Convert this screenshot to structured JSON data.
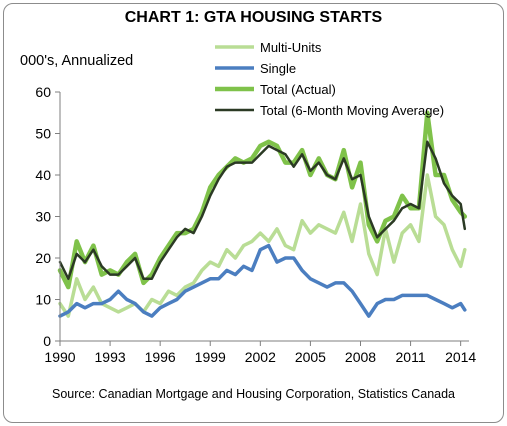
{
  "chart_data": {
    "type": "line",
    "title": "CHART 1: GTA HOUSING STARTS",
    "ylabel": "000's, Annualized",
    "source": "Source: Canadian Mortgage and Housing Corporation, Statistics Canada",
    "ylim": [
      0,
      60
    ],
    "yticks": [
      0,
      10,
      20,
      30,
      40,
      50,
      60
    ],
    "xlim": [
      1990,
      2014.5
    ],
    "xticks": [
      1990,
      1993,
      1996,
      1999,
      2002,
      2005,
      2008,
      2011,
      2014
    ],
    "grid": false,
    "legend": "top",
    "series": [
      {
        "name": "Multi-Units",
        "color": "#b9dd95",
        "x": [
          1990,
          1990.5,
          1991,
          1991.5,
          1992,
          1992.5,
          1993,
          1993.5,
          1994,
          1994.5,
          1995,
          1995.5,
          1996,
          1996.5,
          1997,
          1997.5,
          1998,
          1998.5,
          1999,
          1999.5,
          2000,
          2000.5,
          2001,
          2001.5,
          2002,
          2002.5,
          2003,
          2003.5,
          2004,
          2004.5,
          2005,
          2005.5,
          2006,
          2006.5,
          2007,
          2007.5,
          2008,
          2008.5,
          2009,
          2009.5,
          2010,
          2010.5,
          2011,
          2011.5,
          2012,
          2012.5,
          2013,
          2013.5,
          2014,
          2014.25
        ],
        "values": [
          9,
          6,
          15,
          10,
          13,
          9,
          8,
          7,
          8,
          9,
          7,
          10,
          9,
          12,
          11,
          13,
          14,
          17,
          19,
          18,
          22,
          20,
          23,
          24,
          26,
          24,
          27,
          23,
          22,
          29,
          26,
          28,
          27,
          26,
          31,
          24,
          33,
          21,
          16,
          27,
          19,
          26,
          28,
          24,
          40,
          30,
          28,
          22,
          18,
          22
        ]
      },
      {
        "name": "Single",
        "color": "#4b7ec0",
        "x": [
          1990,
          1990.5,
          1991,
          1991.5,
          1992,
          1992.5,
          1993,
          1993.5,
          1994,
          1994.5,
          1995,
          1995.5,
          1996,
          1996.5,
          1997,
          1997.5,
          1998,
          1998.5,
          1999,
          1999.5,
          2000,
          2000.5,
          2001,
          2001.5,
          2002,
          2002.5,
          2003,
          2003.5,
          2004,
          2004.5,
          2005,
          2005.5,
          2006,
          2006.5,
          2007,
          2007.5,
          2008,
          2008.5,
          2009,
          2009.5,
          2010,
          2010.5,
          2011,
          2011.5,
          2012,
          2012.5,
          2013,
          2013.5,
          2014,
          2014.25
        ],
        "values": [
          6,
          7,
          9,
          8,
          9,
          9,
          10,
          12,
          10,
          9,
          7,
          6,
          8,
          9,
          10,
          12,
          13,
          14,
          15,
          15,
          17,
          16,
          18,
          17,
          22,
          23,
          19,
          20,
          20,
          17,
          15,
          14,
          13,
          14,
          14,
          12,
          9,
          6,
          9,
          10,
          10,
          11,
          11,
          11,
          11,
          10,
          9,
          8,
          9,
          7.5
        ]
      },
      {
        "name": "Total (Actual)",
        "color": "#7fc24a",
        "x": [
          1990,
          1990.5,
          1991,
          1991.5,
          1992,
          1992.5,
          1993,
          1993.5,
          1994,
          1994.5,
          1995,
          1995.5,
          1996,
          1996.5,
          1997,
          1997.5,
          1998,
          1998.5,
          1999,
          1999.5,
          2000,
          2000.5,
          2001,
          2001.5,
          2002,
          2002.5,
          2003,
          2003.5,
          2004,
          2004.5,
          2005,
          2005.5,
          2006,
          2006.5,
          2007,
          2007.5,
          2008,
          2008.5,
          2009,
          2009.5,
          2010,
          2010.5,
          2011,
          2011.5,
          2012,
          2012.5,
          2013,
          2013.5,
          2014,
          2014.25
        ],
        "values": [
          17,
          13,
          24,
          19,
          23,
          16,
          17,
          16,
          19,
          21,
          14,
          16,
          20,
          23,
          26,
          26,
          27,
          31,
          37,
          40,
          42,
          44,
          43,
          44,
          47,
          48,
          47,
          43,
          43,
          46,
          40,
          44,
          40,
          39,
          46,
          37,
          43,
          28,
          24,
          29,
          30,
          35,
          32,
          32,
          55,
          40,
          40,
          34,
          31,
          30
        ]
      },
      {
        "name": "Total (6-Month Moving Average)",
        "color": "#2b3a24",
        "x": [
          1990,
          1990.5,
          1991,
          1991.5,
          1992,
          1992.5,
          1993,
          1993.5,
          1994,
          1994.5,
          1995,
          1995.5,
          1996,
          1996.5,
          1997,
          1997.5,
          1998,
          1998.5,
          1999,
          1999.5,
          2000,
          2000.5,
          2001,
          2001.5,
          2002,
          2002.5,
          2003,
          2003.5,
          2004,
          2004.5,
          2005,
          2005.5,
          2006,
          2006.5,
          2007,
          2007.5,
          2008,
          2008.5,
          2009,
          2009.5,
          2010,
          2010.5,
          2011,
          2011.5,
          2012,
          2012.5,
          2013,
          2013.5,
          2014,
          2014.25
        ],
        "values": [
          19,
          15,
          21,
          19,
          22,
          18,
          16,
          16,
          18,
          20,
          15,
          15,
          19,
          22,
          25,
          27,
          26,
          30,
          35,
          39,
          42,
          43,
          43,
          43,
          45,
          47,
          46,
          45,
          42,
          45,
          41,
          43,
          40,
          39,
          44,
          39,
          40,
          30,
          25,
          27,
          29,
          32,
          33,
          32,
          48,
          44,
          38,
          35,
          33,
          27
        ]
      }
    ]
  }
}
